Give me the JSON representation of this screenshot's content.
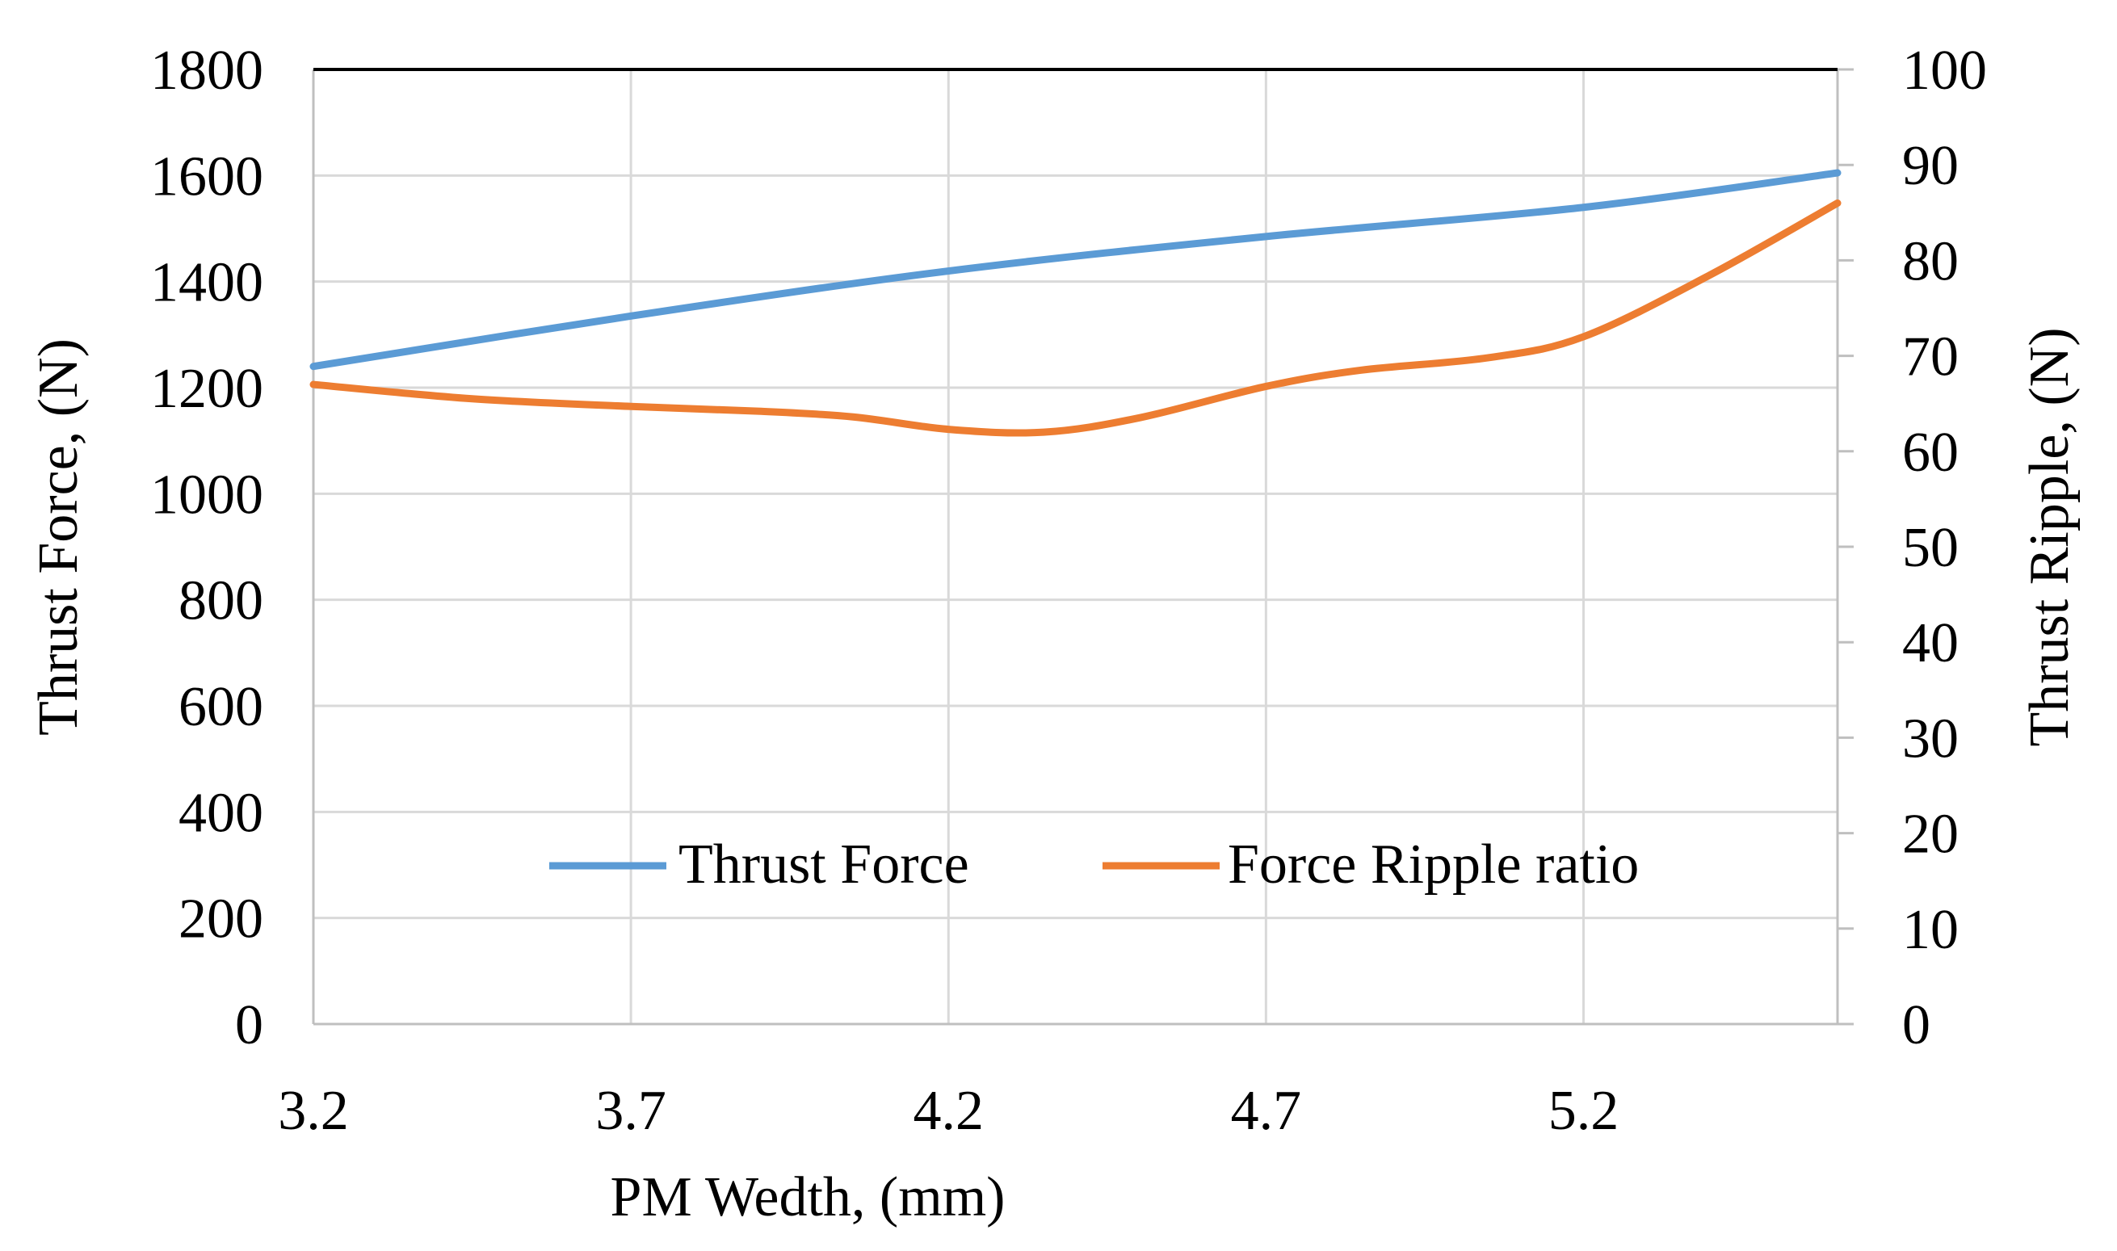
{
  "chart_data": {
    "type": "line",
    "x": [
      3.2,
      3.7,
      4.2,
      4.7,
      5.2,
      5.6
    ],
    "x_ticks": [
      "3.2",
      "3.7",
      "4.2",
      "4.7",
      "5.2"
    ],
    "xlabel": "PM Wedth, (mm)",
    "xlim": [
      3.2,
      5.6
    ],
    "ylabel_left": "Thrust Force, (N)",
    "ylim_left": [
      0,
      1800
    ],
    "y_ticks_left": [
      "0",
      "200",
      "400",
      "600",
      "800",
      "1000",
      "1200",
      "1400",
      "1600",
      "1800"
    ],
    "ylabel_right": "Thrust Ripple, (N)",
    "ylim_right": [
      0,
      100
    ],
    "y_ticks_right": [
      "0",
      "10",
      "20",
      "30",
      "40",
      "50",
      "60",
      "70",
      "80",
      "90",
      "100"
    ],
    "grid": true,
    "legend_position": "bottom-center",
    "series": [
      {
        "name": "Thrust Force",
        "axis": "left",
        "color": "#5B9BD5",
        "x": [
          3.2,
          3.7,
          4.2,
          4.7,
          5.2,
          5.6
        ],
        "values": [
          1240,
          1335,
          1420,
          1485,
          1540,
          1605
        ]
      },
      {
        "name": "Force Ripple ratio",
        "axis": "right",
        "color": "#ED7D31",
        "x": [
          3.2,
          3.45,
          3.7,
          3.9,
          4.05,
          4.2,
          4.35,
          4.5,
          4.7,
          4.85,
          5.05,
          5.2,
          5.4,
          5.6
        ],
        "values": [
          67,
          65.5,
          64.7,
          64.2,
          63.6,
          62.3,
          62.0,
          63.5,
          66.8,
          68.5,
          69.8,
          72,
          78.5,
          86
        ]
      }
    ]
  }
}
